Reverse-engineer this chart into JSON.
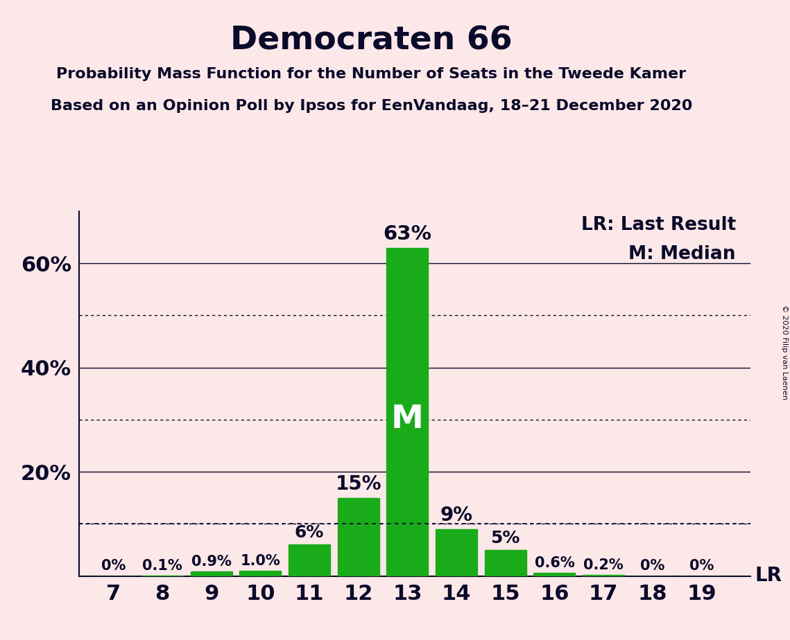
{
  "title": "Democraten 66",
  "subtitle1": "Probability Mass Function for the Number of Seats in the Tweede Kamer",
  "subtitle2": "Based on an Opinion Poll by Ipsos for EenVandaag, 18–21 December 2020",
  "copyright": "© 2020 Filip van Laenen",
  "seats": [
    7,
    8,
    9,
    10,
    11,
    12,
    13,
    14,
    15,
    16,
    17,
    18,
    19
  ],
  "probabilities": [
    0.0,
    0.1,
    0.9,
    1.0,
    6.0,
    15.0,
    63.0,
    9.0,
    5.0,
    0.6,
    0.2,
    0.0,
    0.0
  ],
  "bar_color": "#1aab1a",
  "background_color": "#fce8e8",
  "text_color": "#0a0a2a",
  "median_seat": 13,
  "lr_value": 10.0,
  "solid_grid": [
    20,
    40,
    60
  ],
  "dotted_grid": [
    10,
    30,
    50
  ],
  "labels": [
    "0%",
    "0.1%",
    "0.9%",
    "1.0%",
    "6%",
    "15%",
    "63%",
    "9%",
    "5%",
    "0.6%",
    "0.2%",
    "0%",
    "0%"
  ],
  "legend_lr": "LR: Last Result",
  "legend_m": "M: Median",
  "ytick_labels": [
    "",
    "20%",
    "40%",
    "60%"
  ],
  "ytick_vals": [
    0,
    20,
    40,
    60
  ]
}
